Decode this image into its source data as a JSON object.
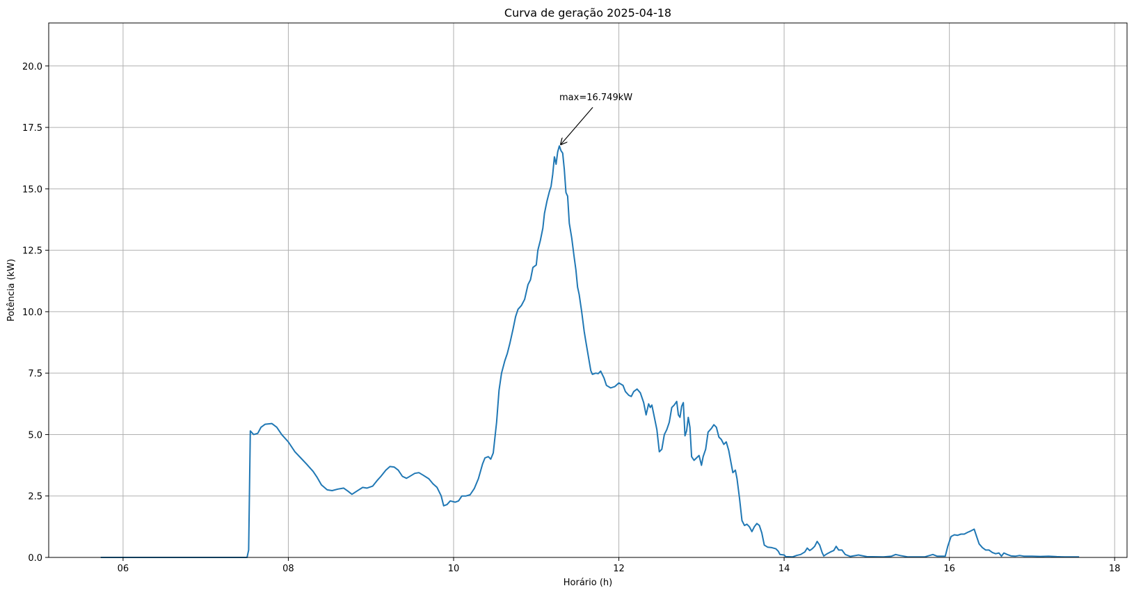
{
  "chart_data": {
    "type": "line",
    "title": "Curva de geração 2025-04-18",
    "xlabel": "Horário (h)",
    "ylabel": "Potência (kW)",
    "xlim": [
      5.1,
      18.15
    ],
    "ylim": [
      0,
      21.75
    ],
    "x_ticks": [
      {
        "value": 6,
        "label": "06"
      },
      {
        "value": 8,
        "label": "08"
      },
      {
        "value": 10,
        "label": "10"
      },
      {
        "value": 12,
        "label": "12"
      },
      {
        "value": 14,
        "label": "14"
      },
      {
        "value": 16,
        "label": "16"
      },
      {
        "value": 18,
        "label": "18"
      }
    ],
    "y_ticks": [
      {
        "value": 0,
        "label": "0.0"
      },
      {
        "value": 2.5,
        "label": "2.5"
      },
      {
        "value": 5,
        "label": "5.0"
      },
      {
        "value": 7.5,
        "label": "7.5"
      },
      {
        "value": 10,
        "label": "10.0"
      },
      {
        "value": 12.5,
        "label": "12.5"
      },
      {
        "value": 15,
        "label": "15.0"
      },
      {
        "value": 17.5,
        "label": "17.5"
      },
      {
        "value": 20,
        "label": "20.0"
      }
    ],
    "grid": true,
    "series": [
      {
        "color": "#1f77b4",
        "points": [
          [
            5.73,
            0
          ],
          [
            7.5,
            0
          ],
          [
            7.52,
            0.3
          ],
          [
            7.54,
            5.15
          ],
          [
            7.58,
            5.0
          ],
          [
            7.63,
            5.05
          ],
          [
            7.67,
            5.3
          ],
          [
            7.72,
            5.42
          ],
          [
            7.8,
            5.45
          ],
          [
            7.86,
            5.3
          ],
          [
            7.92,
            5.0
          ],
          [
            8.0,
            4.7
          ],
          [
            8.08,
            4.3
          ],
          [
            8.15,
            4.05
          ],
          [
            8.22,
            3.8
          ],
          [
            8.3,
            3.5
          ],
          [
            8.35,
            3.25
          ],
          [
            8.4,
            2.95
          ],
          [
            8.47,
            2.75
          ],
          [
            8.53,
            2.72
          ],
          [
            8.6,
            2.78
          ],
          [
            8.67,
            2.82
          ],
          [
            8.72,
            2.7
          ],
          [
            8.77,
            2.57
          ],
          [
            8.83,
            2.7
          ],
          [
            8.9,
            2.85
          ],
          [
            8.95,
            2.82
          ],
          [
            9.02,
            2.9
          ],
          [
            9.08,
            3.15
          ],
          [
            9.12,
            3.3
          ],
          [
            9.18,
            3.55
          ],
          [
            9.23,
            3.7
          ],
          [
            9.28,
            3.68
          ],
          [
            9.33,
            3.55
          ],
          [
            9.38,
            3.3
          ],
          [
            9.43,
            3.22
          ],
          [
            9.48,
            3.32
          ],
          [
            9.53,
            3.42
          ],
          [
            9.58,
            3.45
          ],
          [
            9.63,
            3.35
          ],
          [
            9.7,
            3.2
          ],
          [
            9.75,
            3.0
          ],
          [
            9.8,
            2.85
          ],
          [
            9.85,
            2.5
          ],
          [
            9.88,
            2.1
          ],
          [
            9.92,
            2.15
          ],
          [
            9.96,
            2.3
          ],
          [
            10.02,
            2.25
          ],
          [
            10.06,
            2.3
          ],
          [
            10.1,
            2.5
          ],
          [
            10.15,
            2.5
          ],
          [
            10.2,
            2.55
          ],
          [
            10.25,
            2.8
          ],
          [
            10.3,
            3.2
          ],
          [
            10.35,
            3.8
          ],
          [
            10.38,
            4.05
          ],
          [
            10.42,
            4.1
          ],
          [
            10.45,
            4.0
          ],
          [
            10.48,
            4.25
          ],
          [
            10.52,
            5.5
          ],
          [
            10.55,
            6.8
          ],
          [
            10.58,
            7.5
          ],
          [
            10.62,
            8.0
          ],
          [
            10.65,
            8.3
          ],
          [
            10.68,
            8.7
          ],
          [
            10.72,
            9.3
          ],
          [
            10.75,
            9.8
          ],
          [
            10.78,
            10.1
          ],
          [
            10.82,
            10.25
          ],
          [
            10.86,
            10.5
          ],
          [
            10.9,
            11.1
          ],
          [
            10.93,
            11.3
          ],
          [
            10.96,
            11.8
          ],
          [
            11.0,
            11.9
          ],
          [
            11.02,
            12.5
          ],
          [
            11.05,
            12.9
          ],
          [
            11.08,
            13.4
          ],
          [
            11.1,
            14.0
          ],
          [
            11.13,
            14.5
          ],
          [
            11.16,
            14.9
          ],
          [
            11.18,
            15.1
          ],
          [
            11.2,
            15.6
          ],
          [
            11.22,
            16.3
          ],
          [
            11.24,
            16.0
          ],
          [
            11.26,
            16.5
          ],
          [
            11.28,
            16.75
          ],
          [
            11.3,
            16.55
          ],
          [
            11.32,
            16.45
          ],
          [
            11.34,
            15.8
          ],
          [
            11.36,
            14.85
          ],
          [
            11.38,
            14.7
          ],
          [
            11.4,
            13.6
          ],
          [
            11.43,
            13.0
          ],
          [
            11.46,
            12.2
          ],
          [
            11.48,
            11.7
          ],
          [
            11.5,
            11.0
          ],
          [
            11.52,
            10.7
          ],
          [
            11.55,
            10.0
          ],
          [
            11.58,
            9.2
          ],
          [
            11.6,
            8.8
          ],
          [
            11.63,
            8.2
          ],
          [
            11.66,
            7.6
          ],
          [
            11.68,
            7.45
          ],
          [
            11.72,
            7.5
          ],
          [
            11.75,
            7.48
          ],
          [
            11.78,
            7.58
          ],
          [
            11.82,
            7.3
          ],
          [
            11.85,
            7.0
          ],
          [
            11.9,
            6.9
          ],
          [
            11.95,
            6.95
          ],
          [
            12.0,
            7.1
          ],
          [
            12.05,
            7.0
          ],
          [
            12.08,
            6.75
          ],
          [
            12.12,
            6.6
          ],
          [
            12.15,
            6.55
          ],
          [
            12.18,
            6.75
          ],
          [
            12.22,
            6.85
          ],
          [
            12.26,
            6.7
          ],
          [
            12.3,
            6.3
          ],
          [
            12.33,
            5.8
          ],
          [
            12.36,
            6.25
          ],
          [
            12.38,
            6.1
          ],
          [
            12.4,
            6.2
          ],
          [
            12.43,
            5.7
          ],
          [
            12.46,
            5.2
          ],
          [
            12.49,
            4.3
          ],
          [
            12.52,
            4.4
          ],
          [
            12.55,
            5.0
          ],
          [
            12.58,
            5.2
          ],
          [
            12.61,
            5.5
          ],
          [
            12.64,
            6.1
          ],
          [
            12.67,
            6.2
          ],
          [
            12.7,
            6.35
          ],
          [
            12.72,
            5.8
          ],
          [
            12.74,
            5.7
          ],
          [
            12.76,
            6.15
          ],
          [
            12.78,
            6.3
          ],
          [
            12.8,
            4.95
          ],
          [
            12.82,
            5.15
          ],
          [
            12.84,
            5.7
          ],
          [
            12.86,
            5.3
          ],
          [
            12.88,
            4.1
          ],
          [
            12.91,
            3.95
          ],
          [
            12.94,
            4.05
          ],
          [
            12.97,
            4.15
          ],
          [
            13.0,
            3.75
          ],
          [
            13.02,
            4.1
          ],
          [
            13.05,
            4.4
          ],
          [
            13.08,
            5.1
          ],
          [
            13.12,
            5.25
          ],
          [
            13.15,
            5.4
          ],
          [
            13.18,
            5.3
          ],
          [
            13.21,
            4.9
          ],
          [
            13.24,
            4.8
          ],
          [
            13.27,
            4.6
          ],
          [
            13.3,
            4.7
          ],
          [
            13.33,
            4.35
          ],
          [
            13.36,
            3.8
          ],
          [
            13.38,
            3.45
          ],
          [
            13.41,
            3.55
          ],
          [
            13.43,
            3.2
          ],
          [
            13.46,
            2.4
          ],
          [
            13.49,
            1.5
          ],
          [
            13.52,
            1.3
          ],
          [
            13.55,
            1.35
          ],
          [
            13.58,
            1.25
          ],
          [
            13.61,
            1.05
          ],
          [
            13.64,
            1.25
          ],
          [
            13.67,
            1.38
          ],
          [
            13.7,
            1.3
          ],
          [
            13.73,
            1.0
          ],
          [
            13.76,
            0.5
          ],
          [
            13.8,
            0.42
          ],
          [
            13.85,
            0.4
          ],
          [
            13.9,
            0.35
          ],
          [
            13.93,
            0.25
          ],
          [
            13.95,
            0.12
          ],
          [
            14.0,
            0.1
          ],
          [
            14.02,
            0.03
          ],
          [
            14.1,
            0.02
          ],
          [
            14.15,
            0.08
          ],
          [
            14.2,
            0.12
          ],
          [
            14.25,
            0.22
          ],
          [
            14.28,
            0.38
          ],
          [
            14.31,
            0.28
          ],
          [
            14.34,
            0.35
          ],
          [
            14.37,
            0.45
          ],
          [
            14.4,
            0.65
          ],
          [
            14.43,
            0.5
          ],
          [
            14.46,
            0.2
          ],
          [
            14.48,
            0.06
          ],
          [
            14.52,
            0.15
          ],
          [
            14.56,
            0.22
          ],
          [
            14.6,
            0.28
          ],
          [
            14.63,
            0.45
          ],
          [
            14.66,
            0.3
          ],
          [
            14.7,
            0.3
          ],
          [
            14.74,
            0.12
          ],
          [
            14.8,
            0.04
          ],
          [
            14.9,
            0.1
          ],
          [
            15.0,
            0.03
          ],
          [
            15.2,
            0.02
          ],
          [
            15.3,
            0.05
          ],
          [
            15.35,
            0.12
          ],
          [
            15.4,
            0.08
          ],
          [
            15.5,
            0.02
          ],
          [
            15.7,
            0.02
          ],
          [
            15.8,
            0.12
          ],
          [
            15.85,
            0.05
          ],
          [
            15.95,
            0.05
          ],
          [
            15.98,
            0.45
          ],
          [
            16.02,
            0.85
          ],
          [
            16.06,
            0.92
          ],
          [
            16.1,
            0.9
          ],
          [
            16.14,
            0.95
          ],
          [
            16.18,
            0.95
          ],
          [
            16.22,
            1.02
          ],
          [
            16.26,
            1.08
          ],
          [
            16.3,
            1.15
          ],
          [
            16.33,
            0.85
          ],
          [
            16.36,
            0.55
          ],
          [
            16.4,
            0.4
          ],
          [
            16.44,
            0.3
          ],
          [
            16.48,
            0.3
          ],
          [
            16.52,
            0.2
          ],
          [
            16.56,
            0.15
          ],
          [
            16.6,
            0.18
          ],
          [
            16.63,
            0.05
          ],
          [
            16.66,
            0.18
          ],
          [
            16.7,
            0.12
          ],
          [
            16.75,
            0.06
          ],
          [
            16.8,
            0.05
          ],
          [
            16.85,
            0.08
          ],
          [
            16.9,
            0.05
          ],
          [
            17.0,
            0.05
          ],
          [
            17.1,
            0.04
          ],
          [
            17.2,
            0.05
          ],
          [
            17.3,
            0.03
          ],
          [
            17.4,
            0.02
          ],
          [
            17.57,
            0.02
          ]
        ]
      }
    ],
    "annotations": [
      {
        "text": "max=16.749kW",
        "point": [
          11.28,
          16.749
        ],
        "text_at": [
          11.28,
          18.6
        ]
      }
    ]
  }
}
